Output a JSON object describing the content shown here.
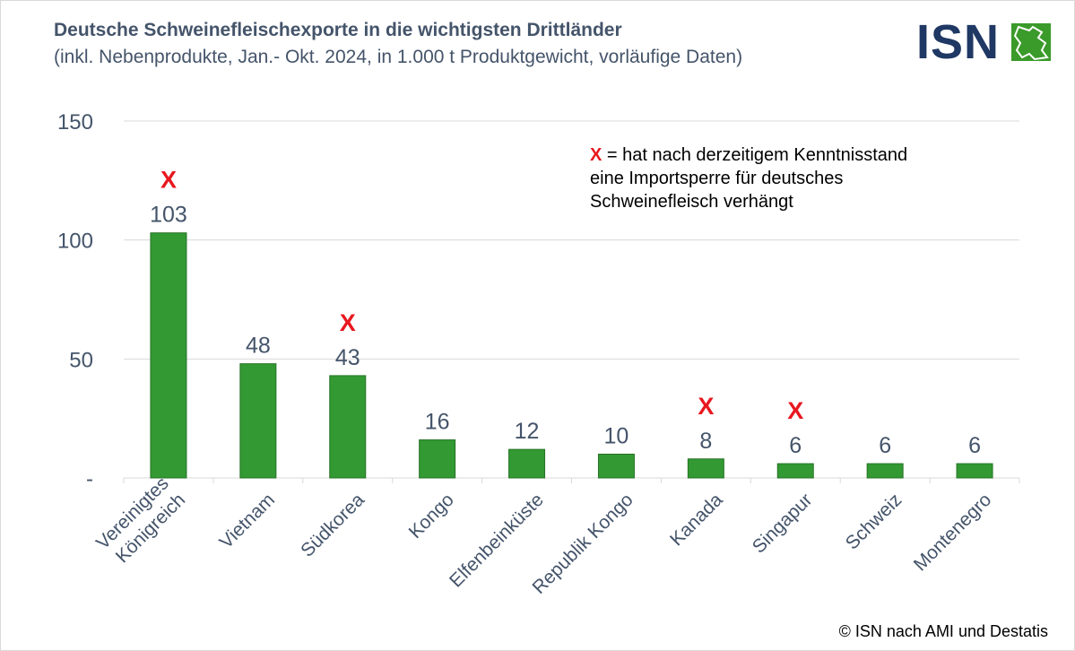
{
  "header": {
    "title": "Deutsche Schweinefleischexporte in die wichtigsten Drittländer",
    "subtitle": "(inkl. Nebenprodukte, Jan.- Okt. 2024, in 1.000 t Produktgewicht, vorläufige Daten)"
  },
  "logo": {
    "text": "ISN"
  },
  "legend": {
    "marker": "X",
    "line1": " = hat nach derzeitigem Kenntnisstand",
    "line2": "eine Importsperre für deutsches",
    "line3": "Schweinefleisch verhängt"
  },
  "source": "© ISN nach AMI und Destatis",
  "colors": {
    "bar": "#339933",
    "bar_edge": "#267326",
    "marker": "#e8171f",
    "axis_text": "#44546a",
    "grid": "#d9d9d9"
  },
  "chart_data": {
    "type": "bar",
    "categories": [
      "Vereinigtes Königreich",
      "Vietnam",
      "Südkorea",
      "Kongo",
      "Elfenbeinküste",
      "Republik Kongo",
      "Kanada",
      "Singapur",
      "Schweiz",
      "Montenegro"
    ],
    "category_lines": [
      [
        "Vereinigtes",
        "Königreich"
      ],
      [
        "Vietnam"
      ],
      [
        "Südkorea"
      ],
      [
        "Kongo"
      ],
      [
        "Elfenbeinküste"
      ],
      [
        "Republik Kongo"
      ],
      [
        "Kanada"
      ],
      [
        "Singapur"
      ],
      [
        "Schweiz"
      ],
      [
        "Montenegro"
      ]
    ],
    "values": [
      103,
      48,
      43,
      16,
      12,
      10,
      8,
      6,
      6,
      6
    ],
    "data_labels": [
      "103",
      "48",
      "43",
      "16",
      "12",
      "10",
      "8",
      "6",
      "6",
      "6"
    ],
    "import_ban": [
      true,
      false,
      true,
      false,
      false,
      false,
      true,
      true,
      false,
      false
    ],
    "ylim": [
      0,
      150
    ],
    "yticks": [
      0,
      50,
      100,
      150
    ],
    "ytick_labels": [
      "-",
      "50",
      "100",
      "150"
    ],
    "grid": true,
    "legend_position": "top-right"
  }
}
